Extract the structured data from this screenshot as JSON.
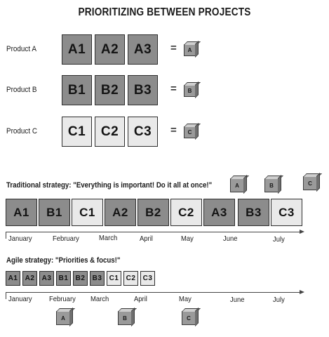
{
  "title": "PRIORITIZING BETWEEN PROJECTS",
  "products": [
    {
      "label": "Product A",
      "tiles": [
        "A1",
        "A2",
        "A3"
      ],
      "equals": "=",
      "result": "A",
      "shade": "dark"
    },
    {
      "label": "Product B",
      "tiles": [
        "B1",
        "B2",
        "B3"
      ],
      "equals": "=",
      "result": "B",
      "shade": "dark"
    },
    {
      "label": "Product C",
      "tiles": [
        "C1",
        "C2",
        "C3"
      ],
      "equals": "=",
      "result": "C",
      "shade": "light"
    }
  ],
  "traditional": {
    "heading": "Traditional strategy: \"Everything is important! Do it all at once!\"",
    "sequence": [
      "A1",
      "B1",
      "C1",
      "A2",
      "B2",
      "C2",
      "A3",
      "B3",
      "C3"
    ],
    "results": [
      "A",
      "B",
      "C"
    ],
    "months": [
      "January",
      "February",
      "March",
      "April",
      "May",
      "June",
      "July"
    ]
  },
  "agile": {
    "heading": "Agile strategy: \"Priorities & focus!\"",
    "sequence": [
      "A1",
      "A2",
      "A3",
      "B1",
      "B2",
      "B3",
      "C1",
      "C2",
      "C3"
    ],
    "results": [
      "A",
      "B",
      "C"
    ],
    "months": [
      "January",
      "February",
      "March",
      "April",
      "May",
      "June",
      "July"
    ]
  },
  "colors": {
    "dark_tile": "#8c8c8c",
    "light_tile": "#e9e9e9",
    "border": "#2e2e2e"
  }
}
